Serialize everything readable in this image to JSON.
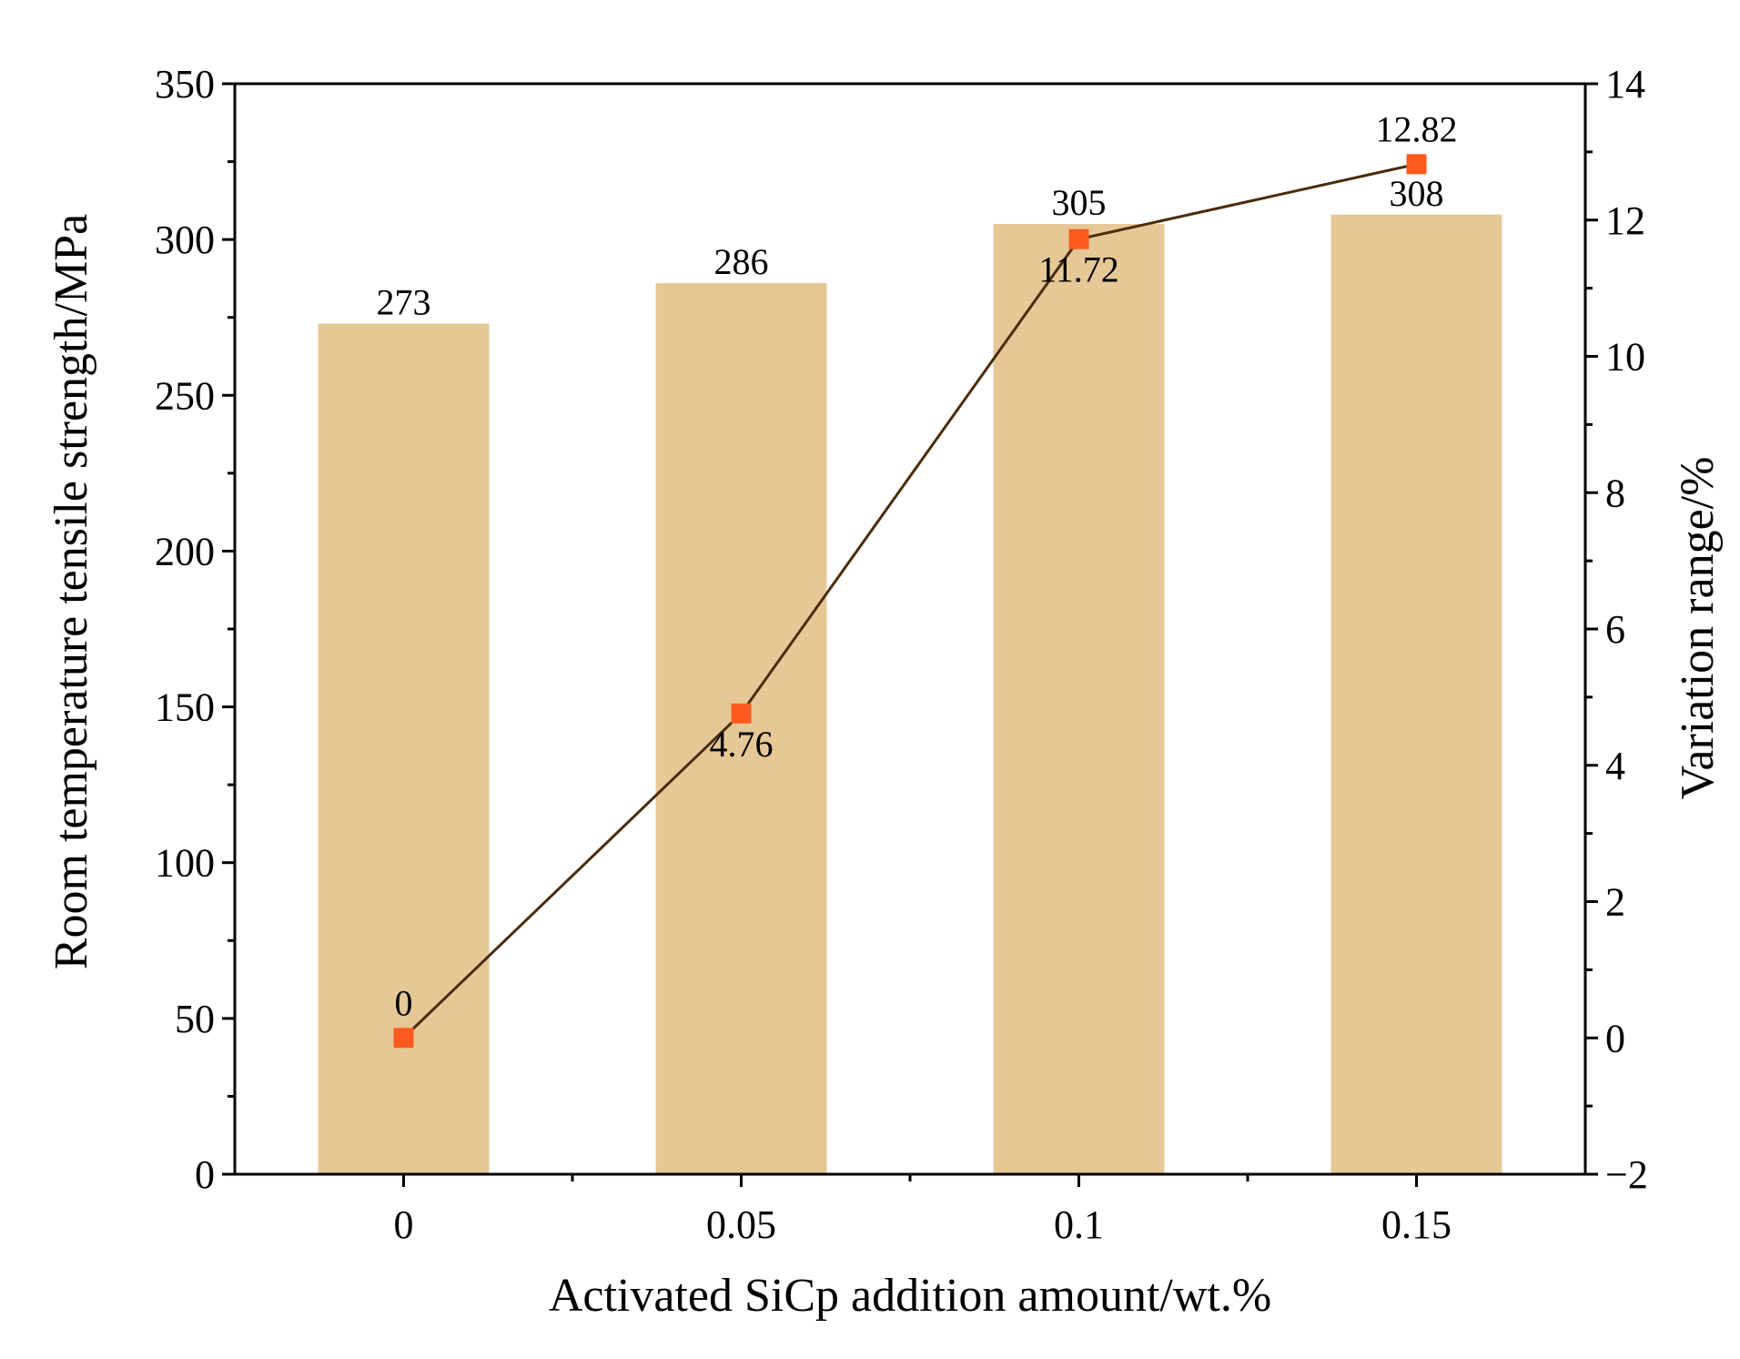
{
  "chart_data": {
    "type": "bar+line",
    "title": "",
    "xlabel": "Activated SiCp addition amount/wt.%",
    "ylabel_left": "Room temperature  tensile strength/MPa",
    "ylabel_right": "Variation range/%",
    "categories": [
      "0",
      "0.05",
      "0.1",
      "0.15"
    ],
    "bar_series": {
      "name": "Room temperature tensile strength",
      "values": [
        273,
        286,
        305,
        308
      ],
      "labels": [
        "273",
        "286",
        "305",
        "308"
      ],
      "color": "#e6c896"
    },
    "line_series": {
      "name": "Variation range",
      "values": [
        0,
        4.76,
        11.72,
        12.82
      ],
      "labels": [
        "0",
        "4.76",
        "11.72",
        "12.82"
      ],
      "marker_color": "#ff5a1e",
      "line_color": "#4a2c0a"
    },
    "ylim_left": [
      0,
      350
    ],
    "yticks_left": [
      "0",
      "50",
      "100",
      "150",
      "200",
      "250",
      "300",
      "350"
    ],
    "ylim_right": [
      -2,
      14
    ],
    "yticks_right": [
      "−2",
      "0",
      "2",
      "4",
      "6",
      "8",
      "10",
      "12",
      "14"
    ],
    "grid": false
  }
}
